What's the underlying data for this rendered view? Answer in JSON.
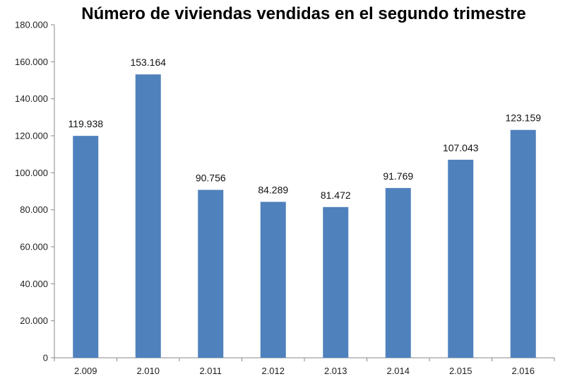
{
  "chart_data": {
    "type": "bar",
    "title": "Número de viviendas vendidas en el segundo trimestre",
    "xlabel": "",
    "ylabel": "",
    "categories": [
      "2.009",
      "2.010",
      "2.011",
      "2.012",
      "2.013",
      "2.014",
      "2.015",
      "2.016"
    ],
    "values": [
      119938,
      153164,
      90756,
      84289,
      81472,
      91769,
      107043,
      123159
    ],
    "value_labels": [
      "119.938",
      "153.164",
      "90.756",
      "84.289",
      "81.472",
      "91.769",
      "107.043",
      "123.159"
    ],
    "ylim": [
      0,
      180000
    ],
    "yticks": [
      0,
      20000,
      40000,
      60000,
      80000,
      100000,
      120000,
      140000,
      160000,
      180000
    ],
    "ytick_labels": [
      "0",
      "20.000",
      "40.000",
      "60.000",
      "80.000",
      "100.000",
      "120.000",
      "140.000",
      "160.000",
      "180.000"
    ],
    "grid": false,
    "legend": "none",
    "bar_color": "#4f81bd"
  }
}
